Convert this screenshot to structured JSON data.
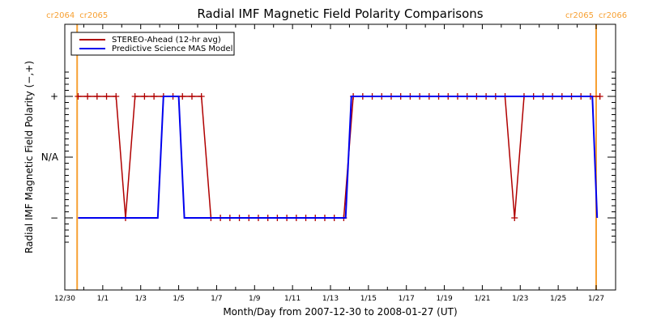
{
  "chart_data": {
    "type": "line",
    "title": "Radial IMF Magnetic Field Polarity Comparisons",
    "xlabel": "Month/Day from 2007-12-30 to 2008-01-27 (UT)",
    "ylabel": "Radial IMF Magnetic Field Polarity (−,+)",
    "x_unit": "days since 2007-12-30",
    "xlim": [
      0,
      29
    ],
    "ylim": [
      -1.5,
      1.5
    ],
    "x_ticks": [
      {
        "x": 0,
        "label": "12/30"
      },
      {
        "x": 2,
        "label": "1/1"
      },
      {
        "x": 4,
        "label": "1/3"
      },
      {
        "x": 6,
        "label": "1/5"
      },
      {
        "x": 8,
        "label": "1/7"
      },
      {
        "x": 10,
        "label": "1/9"
      },
      {
        "x": 12,
        "label": "1/11"
      },
      {
        "x": 14,
        "label": "1/13"
      },
      {
        "x": 16,
        "label": "1/15"
      },
      {
        "x": 18,
        "label": "1/17"
      },
      {
        "x": 20,
        "label": "1/19"
      },
      {
        "x": 22,
        "label": "1/21"
      },
      {
        "x": 24,
        "label": "1/23"
      },
      {
        "x": 26,
        "label": "1/25"
      },
      {
        "x": 28,
        "label": "1/27"
      }
    ],
    "y_ticks": [
      {
        "y": 1,
        "label": "+"
      },
      {
        "y": 0,
        "label": "N/A"
      },
      {
        "y": -1,
        "label": "−"
      }
    ],
    "carrington_markers": [
      {
        "x": 0.65,
        "label_left": "cr2064",
        "label_right": "cr2065"
      },
      {
        "x": 28.0,
        "label_left": "cr2065",
        "label_right": "cr2066"
      }
    ],
    "legend": {
      "position": "top-left",
      "entries": [
        "STEREO-Ahead (12-hr avg)",
        "Predictive Science MAS Model"
      ]
    },
    "series": [
      {
        "name": "STEREO-Ahead (12-hr avg)",
        "color": "#b00000",
        "markers": true,
        "points": [
          [
            0.7,
            1
          ],
          [
            1.2,
            1
          ],
          [
            1.7,
            1
          ],
          [
            2.2,
            1
          ],
          [
            2.7,
            1
          ],
          [
            3.2,
            -1
          ],
          [
            3.7,
            1
          ],
          [
            4.2,
            1
          ],
          [
            4.7,
            1
          ],
          [
            5.2,
            1
          ],
          [
            5.7,
            1
          ],
          [
            6.2,
            1
          ],
          [
            6.7,
            1
          ],
          [
            7.2,
            1
          ],
          [
            7.7,
            -1
          ],
          [
            8.2,
            -1
          ],
          [
            8.7,
            -1
          ],
          [
            9.2,
            -1
          ],
          [
            9.7,
            -1
          ],
          [
            10.2,
            -1
          ],
          [
            10.7,
            -1
          ],
          [
            11.2,
            -1
          ],
          [
            11.7,
            -1
          ],
          [
            12.2,
            -1
          ],
          [
            12.7,
            -1
          ],
          [
            13.2,
            -1
          ],
          [
            13.7,
            -1
          ],
          [
            14.2,
            -1
          ],
          [
            14.7,
            -1
          ],
          [
            15.2,
            1
          ],
          [
            15.7,
            1
          ],
          [
            16.2,
            1
          ],
          [
            16.7,
            1
          ],
          [
            17.2,
            1
          ],
          [
            17.7,
            1
          ],
          [
            18.2,
            1
          ],
          [
            18.7,
            1
          ],
          [
            19.2,
            1
          ],
          [
            19.7,
            1
          ],
          [
            20.2,
            1
          ],
          [
            20.7,
            1
          ],
          [
            21.2,
            1
          ],
          [
            21.7,
            1
          ],
          [
            22.2,
            1
          ],
          [
            22.7,
            1
          ],
          [
            23.2,
            1
          ],
          [
            23.7,
            -1
          ],
          [
            24.2,
            1
          ],
          [
            24.7,
            1
          ],
          [
            25.2,
            1
          ],
          [
            25.7,
            1
          ],
          [
            26.2,
            1
          ],
          [
            26.7,
            1
          ],
          [
            27.2,
            1
          ],
          [
            27.7,
            1
          ],
          [
            28.2,
            1
          ]
        ]
      },
      {
        "name": "Predictive Science MAS Model",
        "color": "#0000ee",
        "markers": false,
        "points": [
          [
            0.7,
            -1
          ],
          [
            4.9,
            -1
          ],
          [
            5.2,
            1
          ],
          [
            6.0,
            1
          ],
          [
            6.3,
            -1
          ],
          [
            14.8,
            -1
          ],
          [
            15.1,
            1
          ],
          [
            27.8,
            1
          ],
          [
            28.05,
            -1
          ]
        ]
      }
    ]
  }
}
